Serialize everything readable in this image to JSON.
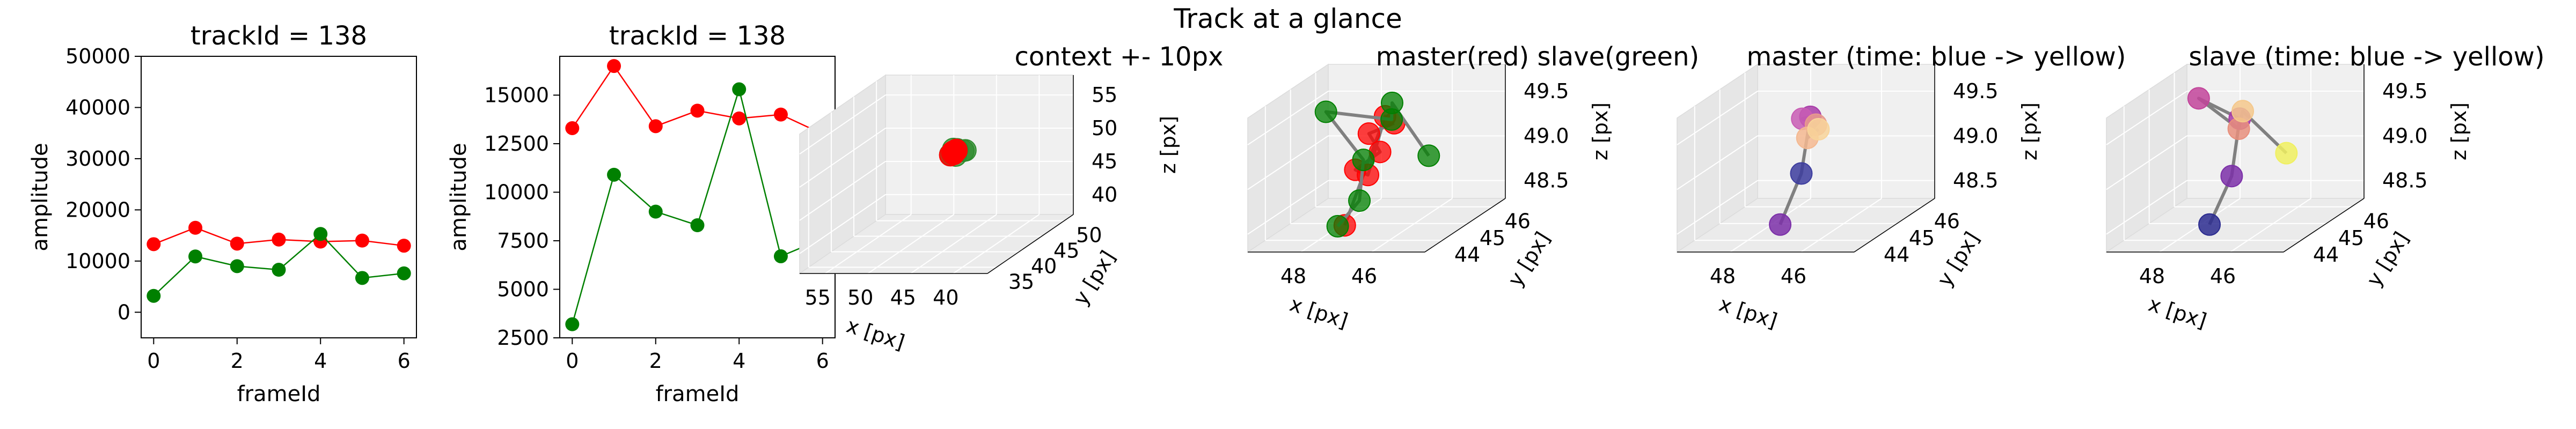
{
  "figure": {
    "suptitle": "Track at a glance"
  },
  "chart_data": [
    {
      "type": "line",
      "title": "trackId = 138",
      "xlabel": "frameId",
      "ylabel": "amplitude",
      "x": [
        0,
        1,
        2,
        3,
        4,
        5,
        6
      ],
      "xticks": [
        "0",
        "2",
        "4",
        "6"
      ],
      "yticks": [
        "0",
        "10000",
        "20000",
        "30000",
        "40000",
        "50000"
      ],
      "xlim": [
        -0.3,
        6.3
      ],
      "ylim": [
        -5000,
        50000
      ],
      "series": [
        {
          "color": "#ff0000",
          "values": [
            13300,
            16500,
            13400,
            14200,
            13800,
            14000,
            13000
          ]
        },
        {
          "color": "#008000",
          "values": [
            3200,
            10900,
            9000,
            8300,
            15300,
            6700,
            7600
          ]
        }
      ]
    },
    {
      "type": "line",
      "title": "trackId = 138",
      "xlabel": "frameId",
      "ylabel": "amplitude",
      "x": [
        0,
        1,
        2,
        3,
        4,
        5,
        6
      ],
      "xticks": [
        "0",
        "2",
        "4",
        "6"
      ],
      "yticks": [
        "2500",
        "5000",
        "7500",
        "10000",
        "12500",
        "15000"
      ],
      "xlim": [
        -0.3,
        6.3
      ],
      "ylim": [
        2500,
        17000
      ],
      "series": [
        {
          "color": "#ff0000",
          "values": [
            13300,
            16500,
            13400,
            14200,
            13800,
            14000,
            13000
          ]
        },
        {
          "color": "#008000",
          "values": [
            3200,
            10900,
            9000,
            8300,
            15300,
            6700,
            7600
          ]
        }
      ]
    },
    {
      "type": "scatter",
      "projection": "3d",
      "title": "context +- 10px",
      "xlabel": "x [px]",
      "ylabel": "y [px]",
      "zlabel": "z [px]",
      "xticks": [
        "40",
        "45",
        "50",
        "55"
      ],
      "yticks": [
        "35",
        "40",
        "45",
        "50"
      ],
      "zticks": [
        "40",
        "45",
        "50",
        "55"
      ],
      "xlim": [
        36,
        58
      ],
      "ylim": [
        33,
        52
      ],
      "zlim": [
        37,
        58
      ],
      "series": [
        {
          "color": "#2e8b2e",
          "points": [
            [
              46,
              47,
              49
            ],
            [
              47,
              46,
              49
            ],
            [
              46.5,
              47.5,
              48.7
            ],
            [
              47.3,
              46.8,
              49.3
            ],
            [
              46.8,
              46.4,
              48.5
            ],
            [
              47,
              47.1,
              49.1
            ],
            [
              47.5,
              46.5,
              48.6
            ]
          ]
        },
        {
          "color": "#ff0000",
          "points": [
            [
              47.2,
              46.6,
              48.8
            ],
            [
              47,
              46.9,
              49
            ],
            [
              47.4,
              46.3,
              48.6
            ],
            [
              46.9,
              46.7,
              49.2
            ],
            [
              47.1,
              46.5,
              48.7
            ],
            [
              47.3,
              46.8,
              48.9
            ],
            [
              47.2,
              46.4,
              49
            ]
          ]
        }
      ]
    },
    {
      "type": "scatter",
      "projection": "3d",
      "title": "master(red) slave(green)",
      "xlabel": "x [px]",
      "ylabel": "y [px]",
      "zlabel": "z [px]",
      "xticks": [
        "46",
        "48"
      ],
      "yticks": [
        "44",
        "45",
        "46"
      ],
      "zticks": [
        "48.5",
        "49.0",
        "49.5"
      ],
      "xlim": [
        44.5,
        49.5
      ],
      "ylim": [
        43.3,
        46.5
      ],
      "zlim": [
        48.3,
        49.8
      ],
      "series": [
        {
          "color": "#ff0000",
          "points": [
            [
              47.0,
              45.6,
              49.31
            ],
            [
              47.5,
              45.3,
              49.25
            ],
            [
              46.9,
              44.9,
              49.12
            ],
            [
              47.6,
              44.9,
              48.92
            ],
            [
              47.1,
              44.7,
              48.9
            ],
            [
              47.4,
              45.8,
              49.35
            ],
            [
              47.4,
              44.2,
              48.43
            ]
          ]
        },
        {
          "color": "#008000",
          "points": [
            [
              45.1,
              44.3,
              49.19
            ],
            [
              47.2,
              45.8,
              49.5
            ],
            [
              47.0,
              45.5,
              49.37
            ],
            [
              48.5,
              45.0,
              49.55
            ],
            [
              47.3,
              44.8,
              49.05
            ],
            [
              47.2,
              44.5,
              48.65
            ],
            [
              47.6,
              44.2,
              48.42
            ]
          ]
        }
      ]
    },
    {
      "type": "scatter",
      "projection": "3d",
      "title": "master (time: blue -> yellow)",
      "xlabel": "x [px]",
      "ylabel": "y [px]",
      "zlabel": "z [px]",
      "xticks": [
        "46",
        "48"
      ],
      "yticks": [
        "44",
        "45",
        "46"
      ],
      "zticks": [
        "48.5",
        "49.0",
        "49.5"
      ],
      "xlim": [
        44.5,
        49.5
      ],
      "ylim": [
        43.3,
        46.5
      ],
      "zlim": [
        48.3,
        49.8
      ],
      "points": [
        [
          47.3,
          44.3,
          48.42
        ],
        [
          47.2,
          45.0,
          48.86
        ],
        [
          47.3,
          45.5,
          49.4
        ],
        [
          47.6,
          45.6,
          49.36
        ],
        [
          47.0,
          45.3,
          49.35
        ],
        [
          47.1,
          45.1,
          49.24
        ],
        [
          47.0,
          45.4,
          49.28
        ]
      ],
      "colors": [
        "#7b2fa8",
        "#3c3c9e",
        "#a83ca8",
        "#c85cb4",
        "#e89a8c",
        "#f4b890",
        "#f8d49a"
      ]
    },
    {
      "type": "scatter",
      "projection": "3d",
      "title": "slave (time: blue -> yellow)",
      "xlabel": "x [px]",
      "ylabel": "y [px]",
      "zlabel": "z [px]",
      "xticks": [
        "46",
        "48"
      ],
      "yticks": [
        "44",
        "45",
        "46"
      ],
      "zticks": [
        "48.5",
        "49.0",
        "49.5"
      ],
      "xlim": [
        44.5,
        49.5
      ],
      "ylim": [
        43.3,
        46.5
      ],
      "zlim": [
        48.3,
        49.8
      ],
      "points": [
        [
          47.3,
          44.3,
          48.42
        ],
        [
          47.1,
          44.9,
          48.85
        ],
        [
          47.3,
          45.5,
          49.38
        ],
        [
          48.6,
          45.7,
          49.57
        ],
        [
          46.9,
          44.9,
          49.38
        ],
        [
          47.0,
          45.2,
          49.52
        ],
        [
          45.2,
          44.4,
          49.2
        ]
      ],
      "colors": [
        "#2b2b8f",
        "#7b2fa8",
        "#a83ca8",
        "#c2449a",
        "#e88f7c",
        "#f4c88c",
        "#f0f060"
      ]
    }
  ]
}
